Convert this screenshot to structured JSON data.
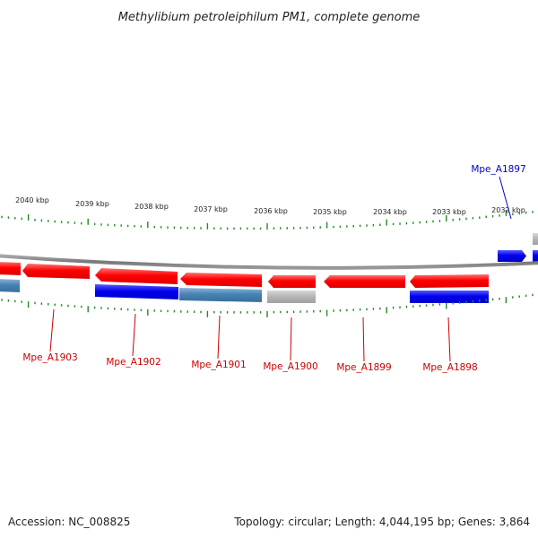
{
  "title": "Methylibium petroleiphilum PM1, complete genome",
  "footer": {
    "accession": "Accession: NC_008825",
    "summary": "Topology: circular; Length: 4,044,195 bp; Genes: 3,864"
  },
  "colors": {
    "forward_gene": "#ff0000",
    "reverse_gene": "#0000ee",
    "steel_gene": "#4682b4",
    "gray_gene": "#b4b4b4",
    "backbone": "#888888",
    "ticks": "#228b22",
    "label_forward": "#cc0000",
    "label_reverse": "#0000cc"
  },
  "scale": {
    "labels": [
      {
        "text": "2040 kbp"
      },
      {
        "text": "2039 kbp"
      },
      {
        "text": "2038 kbp"
      },
      {
        "text": "2037 kbp"
      },
      {
        "text": "2036 kbp"
      },
      {
        "text": "2035 kbp"
      },
      {
        "text": "2034 kbp"
      },
      {
        "text": "2033 kbp"
      },
      {
        "text": "2032 kbp"
      }
    ]
  },
  "gene_labels": [
    {
      "name": "Mpe_A1903",
      "strand": "forward"
    },
    {
      "name": "Mpe_A1902",
      "strand": "forward"
    },
    {
      "name": "Mpe_A1901",
      "strand": "forward"
    },
    {
      "name": "Mpe_A1900",
      "strand": "forward"
    },
    {
      "name": "Mpe_A1899",
      "strand": "forward"
    },
    {
      "name": "Mpe_A1898",
      "strand": "forward"
    },
    {
      "name": "Mpe_A1897",
      "strand": "reverse"
    }
  ]
}
